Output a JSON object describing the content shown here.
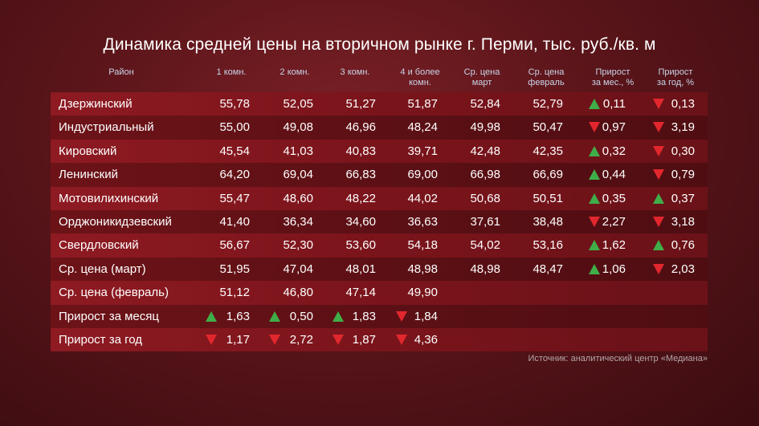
{
  "title": "Динамика средней цены на вторичном рынке г. Перми, тыс. руб./кв. м",
  "headers": {
    "district": "Район",
    "room1": "1 комн.",
    "room2": "2 комн.",
    "room3": "3 комн.",
    "room4_line1": "4 и более",
    "room4_line2": "комн.",
    "avg_march_line1": "Ср. цена",
    "avg_march_line2": "март",
    "avg_feb_line1": "Ср. цена",
    "avg_feb_line2": "февраль",
    "growth_month_line1": "Прирост",
    "growth_month_line2": "за мес., %",
    "growth_year_line1": "Прирост",
    "growth_year_line2": "за год, %"
  },
  "rows": [
    {
      "name": "Дзержинский",
      "r1": "55,78",
      "r2": "52,05",
      "r3": "51,27",
      "r4": "51,87",
      "march": "52,84",
      "feb": "52,79",
      "gm": "0,11",
      "gm_dir": "up",
      "gy": "0,13",
      "gy_dir": "down"
    },
    {
      "name": "Индустриальный",
      "r1": "55,00",
      "r2": "49,08",
      "r3": "46,96",
      "r4": "48,24",
      "march": "49,98",
      "feb": "50,47",
      "gm": "0,97",
      "gm_dir": "down",
      "gy": "3,19",
      "gy_dir": "down"
    },
    {
      "name": "Кировский",
      "r1": "45,54",
      "r2": "41,03",
      "r3": "40,83",
      "r4": "39,71",
      "march": "42,48",
      "feb": "42,35",
      "gm": "0,32",
      "gm_dir": "up",
      "gy": "0,30",
      "gy_dir": "down"
    },
    {
      "name": "Ленинский",
      "r1": "64,20",
      "r2": "69,04",
      "r3": "66,83",
      "r4": "69,00",
      "march": "66,98",
      "feb": "66,69",
      "gm": "0,44",
      "gm_dir": "up",
      "gy": "0,79",
      "gy_dir": "down"
    },
    {
      "name": "Мотовилихинский",
      "r1": "55,47",
      "r2": "48,60",
      "r3": "48,22",
      "r4": "44,02",
      "march": "50,68",
      "feb": "50,51",
      "gm": "0,35",
      "gm_dir": "up",
      "gy": "0,37",
      "gy_dir": "up"
    },
    {
      "name": "Орджоникидзевский",
      "r1": "41,40",
      "r2": "36,34",
      "r3": "34,60",
      "r4": "36,63",
      "march": "37,61",
      "feb": "38,48",
      "gm": "2,27",
      "gm_dir": "down",
      "gy": "3,18",
      "gy_dir": "down"
    },
    {
      "name": "Свердловский",
      "r1": "56,67",
      "r2": "52,30",
      "r3": "53,60",
      "r4": "54,18",
      "march": "54,02",
      "feb": "53,16",
      "gm": "1,62",
      "gm_dir": "up",
      "gy": "0,76",
      "gy_dir": "up"
    },
    {
      "name": "Ср. цена (март)",
      "r1": "51,95",
      "r2": "47,04",
      "r3": "48,01",
      "r4": "48,98",
      "march": "48,98",
      "feb": "48,47",
      "gm": "1,06",
      "gm_dir": "up",
      "gy": "2,03",
      "gy_dir": "down"
    },
    {
      "name": "Ср. цена (февраль)",
      "r1": "51,12",
      "r2": "46,80",
      "r3": "47,14",
      "r4": "49,90"
    },
    {
      "name": "Прирост за месяц",
      "r1": "1,63",
      "r1_dir": "up",
      "r2": "0,50",
      "r2_dir": "up",
      "r3": "1,83",
      "r3_dir": "up",
      "r4": "1,84",
      "r4_dir": "down"
    },
    {
      "name": "Прирост за год",
      "r1": "1,17",
      "r1_dir": "down",
      "r2": "2,72",
      "r2_dir": "down",
      "r3": "1,87",
      "r3_dir": "down",
      "r4": "4,36",
      "r4_dir": "down"
    }
  ],
  "source": "Источник: аналитический центр «Медиана»",
  "colors": {
    "up": "#3fae49",
    "down": "#e1272d"
  }
}
